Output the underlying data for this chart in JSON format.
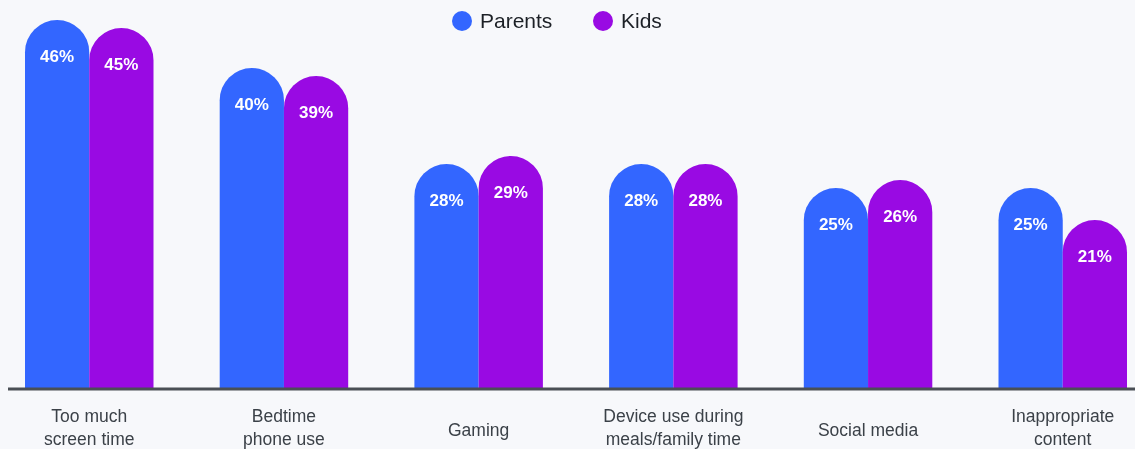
{
  "chart_data": {
    "type": "bar",
    "categories": [
      "Too much screen time",
      "Bedtime phone use",
      "Gaming",
      "Device use during meals/family time",
      "Social media",
      "Inappropriate content"
    ],
    "series": [
      {
        "name": "Parents",
        "color": "#3366ff",
        "values": [
          46,
          40,
          28,
          28,
          25,
          25
        ],
        "value_labels": [
          "46%",
          "40%",
          "28%",
          "28%",
          "25%",
          "25%"
        ]
      },
      {
        "name": "Kids",
        "color": "#990ae3",
        "values": [
          45,
          39,
          29,
          28,
          26,
          21
        ],
        "value_labels": [
          "45%",
          "39%",
          "29%",
          "28%",
          "26%",
          "21%"
        ]
      }
    ],
    "legend": "top"
  }
}
